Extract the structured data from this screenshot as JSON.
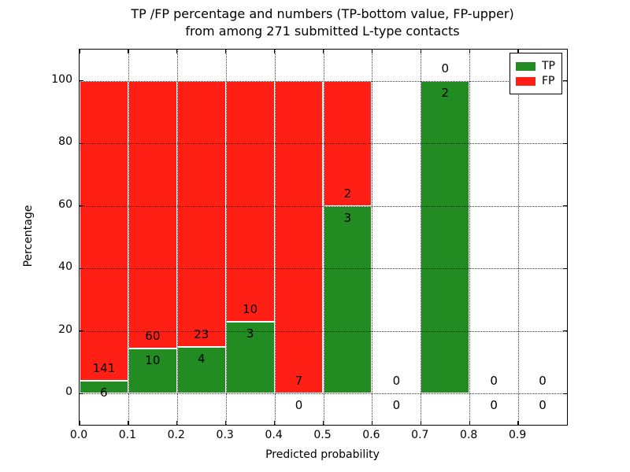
{
  "figure": {
    "title_line1": "TP /FP percentage and numbers (TP-bottom value, FP-upper)",
    "title_line2": "from among 271 submitted L-type contacts"
  },
  "chart_data": {
    "type": "bar",
    "stacked": true,
    "title": "TP /FP percentage and numbers (TP-bottom value, FP-upper) from among 271 submitted L-type contacts",
    "xlabel": "Predicted probability",
    "ylabel": "Percentage",
    "xlim": [
      0.0,
      1.0
    ],
    "ylim": [
      -10,
      110
    ],
    "grid": "dotted",
    "legend_position": "upper right",
    "bin_width": 0.1,
    "bin_starts": [
      0.0,
      0.1,
      0.2,
      0.3,
      0.4,
      0.5,
      0.6,
      0.7,
      0.8,
      0.9
    ],
    "xtick_values": [
      0.0,
      0.1,
      0.2,
      0.3,
      0.4,
      0.5,
      0.6,
      0.7,
      0.8,
      0.9
    ],
    "xtick_labels": [
      "0.0",
      "0.1",
      "0.2",
      "0.3",
      "0.4",
      "0.5",
      "0.6",
      "0.7",
      "0.8",
      "0.9"
    ],
    "ytick_values": [
      0,
      20,
      40,
      60,
      80,
      100
    ],
    "ytick_labels": [
      "0",
      "20",
      "40",
      "60",
      "80",
      "100"
    ],
    "series": [
      {
        "name": "TP",
        "color": "#228b22",
        "counts": [
          6,
          10,
          4,
          3,
          0,
          3,
          0,
          2,
          0,
          0
        ]
      },
      {
        "name": "FP",
        "color": "#ff1f15",
        "counts": [
          141,
          60,
          23,
          10,
          7,
          2,
          0,
          0,
          0,
          0
        ]
      }
    ],
    "tp_percentages": [
      4.1,
      14.3,
      14.8,
      23.1,
      0.0,
      60.0,
      0.0,
      100.0,
      0.0,
      0.0
    ],
    "total_contacts": 271
  },
  "legend": {
    "entries": [
      {
        "label": "TP",
        "color": "#228b22"
      },
      {
        "label": "FP",
        "color": "#ff1f15"
      }
    ]
  },
  "colors": {
    "tp_green": "#228b22",
    "fp_red": "#ff1f15",
    "grid": "#000000",
    "background": "#ffffff",
    "text": "#000000"
  }
}
